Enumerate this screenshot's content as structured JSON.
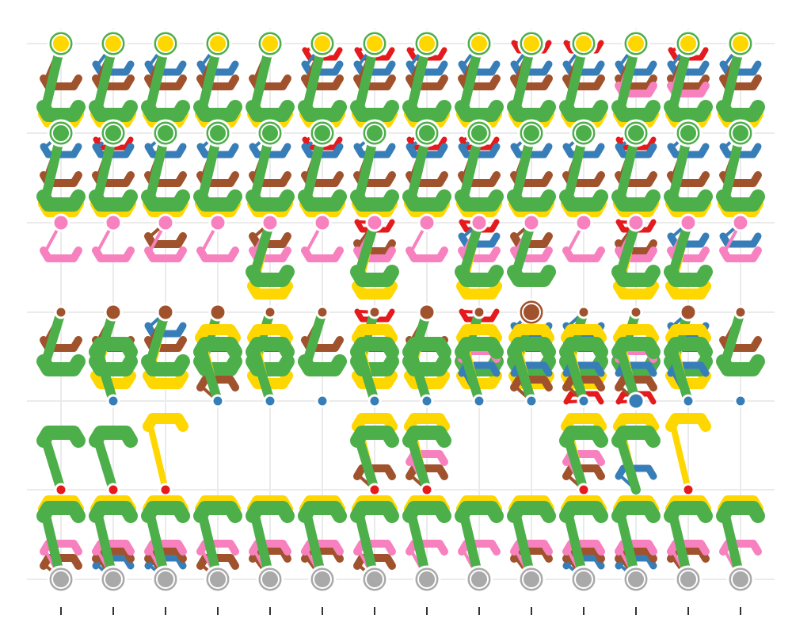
{
  "chart_data": {
    "type": "flow-lines",
    "title": "",
    "xlabel": "",
    "ylabel": "",
    "x_ticks": 14,
    "row_count": 7,
    "grid": true,
    "legend": "none",
    "colors": {
      "gray": "#A9A9A9",
      "green": "#4DAF4A",
      "yellow": "#FFD700",
      "brown": "#A0522D",
      "blue": "#377EB8",
      "red": "#E41A1C",
      "pink": "#F781BF"
    },
    "series_order": [
      "gray",
      "red",
      "blue",
      "brown",
      "pink",
      "yellow",
      "green"
    ],
    "rows": [
      {
        "node_color": "green",
        "node_sizes": [
          3,
          3,
          3,
          3,
          3,
          3,
          3,
          3,
          3,
          3,
          3,
          3,
          3,
          3
        ],
        "inner_color": "yellow",
        "levels": {
          "gray": [
            0,
            0,
            0,
            0,
            0,
            0,
            0,
            0,
            0,
            0,
            0,
            0,
            0,
            0
          ],
          "red": [
            0,
            0,
            0,
            0,
            0,
            2,
            2,
            2,
            0,
            1,
            1,
            0,
            2,
            0
          ],
          "blue": [
            0,
            4,
            4,
            4,
            0,
            4,
            4,
            4,
            4,
            4,
            4,
            4,
            4,
            4
          ],
          "brown": [
            6,
            6,
            6,
            6,
            6,
            6,
            6,
            6,
            6,
            6,
            6,
            6,
            6,
            6
          ],
          "pink": [
            0,
            0,
            0,
            0,
            0,
            0,
            0,
            0,
            0,
            0,
            0,
            7,
            7,
            0
          ],
          "yellow": [
            11,
            11,
            11,
            11,
            11,
            11,
            11,
            11,
            11,
            11,
            11,
            11,
            11,
            11
          ],
          "green": [
            10,
            10,
            10,
            10,
            10,
            10,
            10,
            10,
            10,
            10,
            10,
            10,
            10,
            10
          ]
        }
      },
      {
        "node_color": "green",
        "node_sizes": [
          3,
          3,
          3,
          3,
          3,
          3,
          3,
          3,
          3,
          3,
          3,
          3,
          3,
          3
        ],
        "inner_color": "green",
        "levels": {
          "gray": [
            0,
            0,
            0,
            0,
            0,
            0,
            0,
            0,
            0,
            0,
            0,
            0,
            0,
            0
          ],
          "red": [
            0,
            2,
            0,
            0,
            0,
            2,
            0,
            2,
            2,
            0,
            0,
            2,
            0,
            0
          ],
          "blue": [
            3,
            3,
            3,
            3,
            3,
            3,
            3,
            3,
            3,
            3,
            3,
            3,
            3,
            3
          ],
          "brown": [
            7,
            7,
            7,
            7,
            7,
            7,
            7,
            7,
            7,
            7,
            7,
            7,
            7,
            7
          ],
          "pink": [
            0,
            0,
            0,
            0,
            0,
            0,
            0,
            0,
            0,
            0,
            0,
            0,
            0,
            0
          ],
          "yellow": [
            11,
            11,
            11,
            11,
            11,
            11,
            11,
            11,
            11,
            11,
            11,
            11,
            11,
            11
          ],
          "green": [
            10,
            10,
            10,
            10,
            10,
            10,
            10,
            10,
            10,
            10,
            10,
            10,
            10,
            10
          ]
        }
      },
      {
        "node_color": "pink",
        "node_sizes": [
          2,
          2,
          2,
          2,
          2,
          2,
          2,
          2,
          2,
          2,
          2,
          2,
          2,
          2
        ],
        "inner_color": "pink",
        "levels": {
          "gray": [
            0,
            0,
            0,
            0,
            0,
            0,
            0,
            0,
            0,
            0,
            0,
            0,
            0,
            0
          ],
          "red": [
            0,
            0,
            0,
            0,
            0,
            0,
            1,
            0,
            1,
            0,
            0,
            1,
            0,
            0
          ],
          "blue": [
            0,
            0,
            0,
            0,
            0,
            0,
            0,
            0,
            3,
            3,
            0,
            0,
            3,
            3
          ],
          "brown": [
            0,
            0,
            3,
            0,
            3,
            0,
            4,
            0,
            0,
            3,
            0,
            4,
            0,
            0
          ],
          "pink": [
            5,
            5,
            5,
            5,
            5,
            5,
            5,
            5,
            5,
            5,
            5,
            5,
            5,
            5
          ],
          "yellow": [
            0,
            0,
            0,
            0,
            10,
            0,
            10,
            0,
            10,
            0,
            0,
            10,
            10,
            0
          ],
          "green": [
            0,
            0,
            0,
            0,
            8,
            0,
            8,
            0,
            8,
            8,
            0,
            8,
            8,
            0
          ]
        }
      },
      {
        "node_color": "brown",
        "node_sizes": [
          1,
          2,
          2,
          2,
          1,
          1,
          1,
          2,
          1,
          3,
          1,
          1,
          2,
          1
        ],
        "inner_color": "brown",
        "levels": {
          "gray": [
            0,
            0,
            0,
            0,
            0,
            0,
            0,
            0,
            0,
            0,
            0,
            0,
            0,
            0
          ],
          "red": [
            0,
            0,
            0,
            0,
            0,
            0,
            1,
            0,
            1,
            0,
            0,
            0,
            0,
            0
          ],
          "blue": [
            0,
            0,
            3,
            0,
            0,
            0,
            0,
            0,
            0,
            3,
            3,
            0,
            3,
            0
          ],
          "brown": [
            5,
            5,
            5,
            5,
            5,
            5,
            5,
            5,
            5,
            5,
            5,
            5,
            5,
            5
          ],
          "pink": [
            0,
            0,
            0,
            0,
            0,
            0,
            0,
            0,
            0,
            0,
            0,
            0,
            0,
            0
          ],
          "yellow": [
            0,
            10,
            10,
            0,
            10,
            0,
            10,
            10,
            10,
            10,
            10,
            0,
            10,
            0
          ],
          "green": [
            8,
            8,
            8,
            8,
            8,
            8,
            8,
            8,
            8,
            8,
            8,
            8,
            8,
            8
          ]
        }
      },
      {
        "node_color": "blue",
        "node_sizes": [
          0,
          1,
          0,
          1,
          1,
          1,
          1,
          1,
          1,
          1,
          1,
          2,
          1,
          1
        ],
        "inner_color": "blue",
        "levels": {
          "gray": [
            0,
            0,
            0,
            0,
            0,
            0,
            0,
            0,
            0,
            0,
            0,
            0,
            0,
            0
          ],
          "red": [
            0,
            0,
            0,
            0,
            0,
            0,
            0,
            0,
            0,
            0,
            1,
            1,
            0,
            0
          ],
          "blue": [
            0,
            0,
            0,
            0,
            0,
            0,
            0,
            0,
            5,
            5,
            5,
            5,
            5,
            0
          ],
          "brown": [
            0,
            0,
            0,
            3,
            0,
            0,
            0,
            0,
            0,
            3,
            3,
            3,
            0,
            0
          ],
          "pink": [
            0,
            0,
            0,
            0,
            0,
            0,
            0,
            0,
            7,
            0,
            0,
            7,
            0,
            0
          ],
          "yellow": [
            0,
            0,
            0,
            10,
            10,
            0,
            10,
            0,
            10,
            10,
            10,
            10,
            10,
            0
          ],
          "green": [
            0,
            8,
            0,
            8,
            8,
            0,
            8,
            8,
            8,
            8,
            8,
            8,
            8,
            0
          ]
        }
      },
      {
        "node_color": "red",
        "node_sizes": [
          1,
          1,
          1,
          0,
          0,
          0,
          1,
          1,
          0,
          0,
          1,
          0,
          1,
          0
        ],
        "inner_color": "red",
        "levels": {
          "gray": [
            0,
            0,
            0,
            0,
            0,
            0,
            0,
            0,
            0,
            0,
            0,
            0,
            0,
            0
          ],
          "red": [
            0,
            0,
            0,
            0,
            0,
            0,
            0,
            0,
            0,
            0,
            0,
            0,
            0,
            0
          ],
          "blue": [
            0,
            0,
            0,
            0,
            0,
            0,
            0,
            0,
            0,
            0,
            0,
            3,
            0,
            0
          ],
          "brown": [
            0,
            0,
            0,
            0,
            0,
            0,
            3,
            3,
            0,
            0,
            3,
            0,
            0,
            0
          ],
          "pink": [
            0,
            0,
            0,
            0,
            0,
            0,
            0,
            5,
            0,
            0,
            5,
            0,
            0,
            0
          ],
          "yellow": [
            0,
            0,
            10,
            0,
            0,
            0,
            10,
            10,
            0,
            0,
            10,
            10,
            10,
            0
          ],
          "green": [
            8,
            8,
            0,
            0,
            0,
            0,
            8,
            8,
            0,
            0,
            8,
            8,
            0,
            0
          ]
        }
      },
      {
        "node_color": "gray",
        "node_sizes": [
          3,
          3,
          3,
          3,
          3,
          3,
          3,
          3,
          3,
          3,
          3,
          3,
          3,
          3
        ],
        "inner_color": "gray",
        "levels": {
          "gray": [
            0,
            0,
            0,
            0,
            0,
            0,
            0,
            0,
            0,
            0,
            0,
            0,
            0,
            0
          ],
          "red": [
            0,
            0,
            0,
            0,
            0,
            0,
            0,
            0,
            0,
            0,
            0,
            0,
            0,
            0
          ],
          "blue": [
            0,
            3,
            3,
            0,
            0,
            0,
            0,
            0,
            0,
            0,
            3,
            3,
            0,
            0
          ],
          "brown": [
            3,
            4,
            4,
            3,
            4,
            4,
            3,
            0,
            0,
            4,
            4,
            4,
            4,
            0
          ],
          "pink": [
            5,
            5,
            5,
            5,
            5,
            5,
            5,
            5,
            5,
            5,
            5,
            5,
            5,
            5
          ],
          "yellow": [
            11,
            11,
            11,
            11,
            11,
            11,
            11,
            11,
            11,
            11,
            11,
            11,
            11,
            11
          ],
          "green": [
            10,
            10,
            10,
            10,
            10,
            10,
            10,
            10,
            10,
            10,
            10,
            10,
            10,
            10
          ]
        }
      }
    ]
  }
}
